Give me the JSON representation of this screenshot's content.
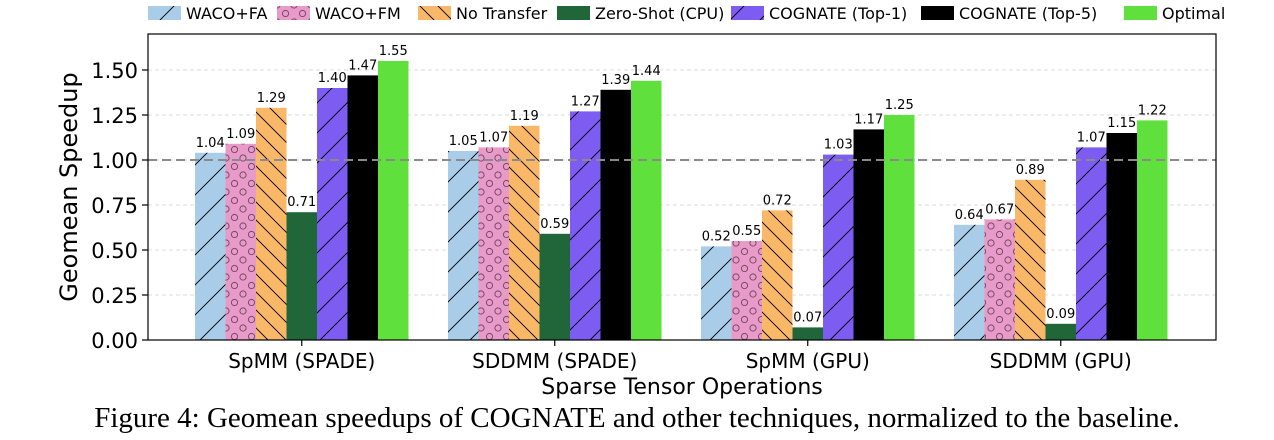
{
  "chart_data": {
    "type": "bar",
    "xlabel": "Sparse Tensor Operations",
    "ylabel": "Geomean Speedup",
    "ylim": [
      0,
      1.7
    ],
    "yticks": [
      "0.00",
      "0.25",
      "0.50",
      "0.75",
      "1.00",
      "1.25",
      "1.50"
    ],
    "ytick_values": [
      0,
      0.25,
      0.5,
      0.75,
      1.0,
      1.25,
      1.5
    ],
    "baseline": 1.0,
    "grid": "horizontal, dashed",
    "legend_placement": "top",
    "categories": [
      "SpMM (SPADE)",
      "SDDMM (SPADE)",
      "SpMM (GPU)",
      "SDDMM (GPU)"
    ],
    "series": [
      {
        "name": "WACO+FA",
        "color": "#a9cce9",
        "pattern": "diag-forward",
        "values": [
          1.04,
          1.05,
          0.52,
          0.64
        ],
        "labels": [
          "1.04",
          "1.05",
          "0.52",
          "0.64"
        ]
      },
      {
        "name": "WACO+FM",
        "color": "#e89bc8",
        "pattern": "circles",
        "values": [
          1.09,
          1.07,
          0.55,
          0.67
        ],
        "labels": [
          "1.09",
          "1.07",
          "0.55",
          "0.67"
        ]
      },
      {
        "name": "No Transfer",
        "color": "#f9b768",
        "pattern": "diag-back",
        "values": [
          1.29,
          1.19,
          0.72,
          0.89
        ],
        "labels": [
          "1.29",
          "1.19",
          "0.72",
          "0.89"
        ]
      },
      {
        "name": "Zero-Shot (CPU)",
        "color": "#216638",
        "pattern": "none",
        "values": [
          0.71,
          0.59,
          0.07,
          0.09
        ],
        "labels": [
          "0.71",
          "0.59",
          "0.07",
          "0.09"
        ]
      },
      {
        "name": "COGNATE (Top-1)",
        "color": "#7d5cf2",
        "pattern": "diag-forward",
        "values": [
          1.4,
          1.27,
          1.03,
          1.07
        ],
        "labels": [
          "1.40",
          "1.27",
          "1.03",
          "1.07"
        ]
      },
      {
        "name": "COGNATE (Top-5)",
        "color": "#000000",
        "pattern": "none",
        "values": [
          1.47,
          1.39,
          1.17,
          1.15
        ],
        "labels": [
          "1.47",
          "1.39",
          "1.17",
          "1.15"
        ]
      },
      {
        "name": "Optimal",
        "color": "#5fe03c",
        "pattern": "none",
        "values": [
          1.55,
          1.44,
          1.25,
          1.22
        ],
        "labels": [
          "1.55",
          "1.44",
          "1.25",
          "1.22"
        ]
      }
    ]
  },
  "caption": "Figure 4: Geomean speedups of COGNATE and other techniques, normalized to the baseline."
}
